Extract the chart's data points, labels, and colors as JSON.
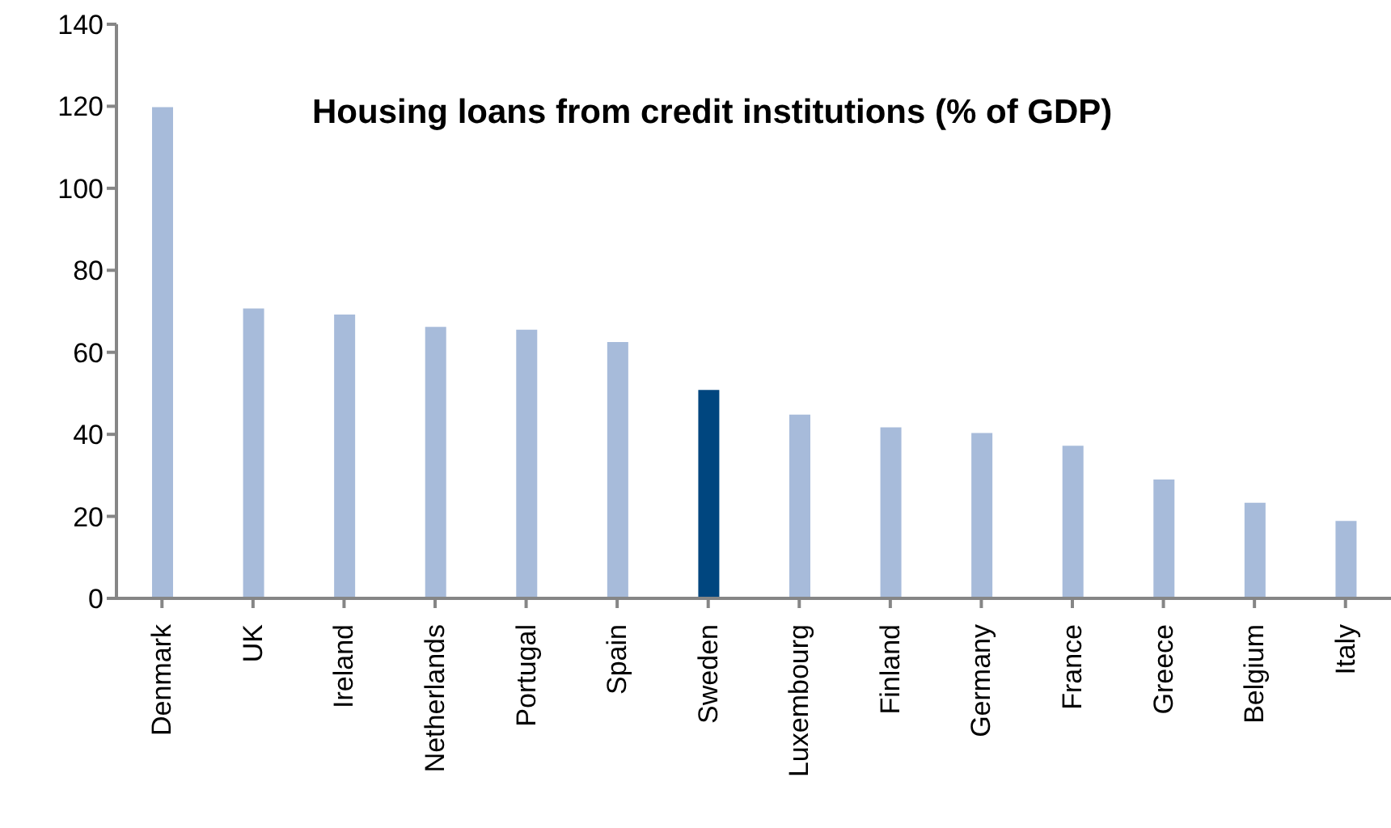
{
  "chart_data": {
    "type": "bar",
    "title": "Housing loans from credit institutions (% of GDP)",
    "categories": [
      "Denmark",
      "UK",
      "Ireland",
      "Netherlands",
      "Portugal",
      "Spain",
      "Sweden",
      "Luxembourg",
      "Finland",
      "Germany",
      "France",
      "Greece",
      "Belgium",
      "Italy"
    ],
    "values": [
      119.8,
      70.7,
      69.2,
      66.2,
      65.5,
      62.5,
      50.8,
      44.8,
      41.7,
      40.3,
      37.2,
      29.0,
      23.3,
      18.9
    ],
    "colors": [
      "#a7bbda",
      "#a7bbda",
      "#a7bbda",
      "#a7bbda",
      "#a7bbda",
      "#a7bbda",
      "#00467f",
      "#a7bbda",
      "#a7bbda",
      "#a7bbda",
      "#a7bbda",
      "#a7bbda",
      "#a7bbda",
      "#a7bbda"
    ],
    "ylim": [
      0,
      140
    ],
    "yticks": [
      0,
      20,
      40,
      60,
      80,
      100,
      120,
      140
    ],
    "grid": false,
    "legend": false
  }
}
